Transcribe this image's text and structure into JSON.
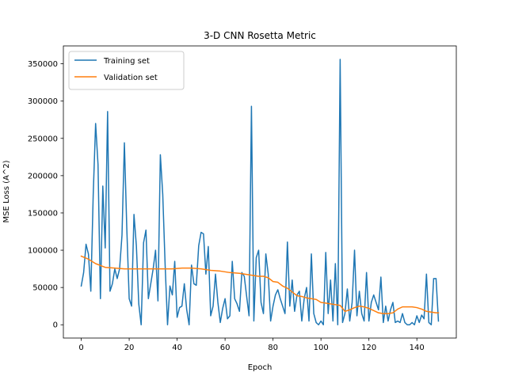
{
  "chart_data": {
    "type": "line",
    "title": "3-D CNN Rosetta Metric",
    "xlabel": "Epoch",
    "ylabel": "MSE Loss (A^2)",
    "xlim": [
      -7.45,
      156.45
    ],
    "ylim": [
      -17800,
      374000
    ],
    "xticks": [
      0,
      20,
      40,
      60,
      80,
      100,
      120,
      140
    ],
    "yticks": [
      0,
      50000,
      100000,
      150000,
      200000,
      250000,
      300000,
      350000
    ],
    "grid": false,
    "legend_position": "upper left",
    "series": [
      {
        "name": "Training set",
        "color": "#1f77b4",
        "x": [
          0,
          1,
          2,
          3,
          4,
          5,
          6,
          7,
          8,
          9,
          10,
          11,
          12,
          13,
          14,
          15,
          16,
          17,
          18,
          19,
          20,
          21,
          22,
          23,
          24,
          25,
          26,
          27,
          28,
          29,
          30,
          31,
          32,
          33,
          34,
          35,
          36,
          37,
          38,
          39,
          40,
          41,
          42,
          43,
          44,
          45,
          46,
          47,
          48,
          49,
          50,
          51,
          52,
          53,
          54,
          55,
          56,
          57,
          58,
          59,
          60,
          61,
          62,
          63,
          64,
          65,
          66,
          67,
          68,
          69,
          70,
          71,
          72,
          73,
          74,
          75,
          76,
          77,
          78,
          79,
          80,
          81,
          82,
          83,
          84,
          85,
          86,
          87,
          88,
          89,
          90,
          91,
          92,
          93,
          94,
          95,
          96,
          97,
          98,
          99,
          100,
          101,
          102,
          103,
          104,
          105,
          106,
          107,
          108,
          109,
          110,
          111,
          112,
          113,
          114,
          115,
          116,
          117,
          118,
          119,
          120,
          121,
          122,
          123,
          124,
          125,
          126,
          127,
          128,
          129,
          130,
          131,
          132,
          133,
          134,
          135,
          136,
          137,
          138,
          139,
          140,
          141,
          142,
          143,
          144,
          145,
          146,
          147,
          148,
          149
        ],
        "values": [
          52000,
          70000,
          108000,
          95000,
          45000,
          175000,
          270000,
          215000,
          35000,
          186000,
          103000,
          286000,
          45000,
          55000,
          75000,
          62000,
          75000,
          120000,
          244000,
          130000,
          35000,
          25000,
          148000,
          106000,
          28000,
          0,
          110000,
          127000,
          35000,
          55000,
          75000,
          100000,
          32000,
          228000,
          175000,
          80000,
          0,
          52000,
          40000,
          85000,
          10000,
          23000,
          25000,
          55000,
          20000,
          0,
          80000,
          55000,
          53000,
          106000,
          124000,
          122000,
          68000,
          105000,
          12000,
          25000,
          68000,
          30000,
          3000,
          22000,
          35000,
          8000,
          12000,
          85000,
          35000,
          28000,
          18000,
          70000,
          65000,
          38000,
          12000,
          293000,
          5000,
          90000,
          100000,
          30000,
          15000,
          95000,
          68000,
          5000,
          25000,
          40000,
          47000,
          35000,
          25000,
          15000,
          111000,
          25000,
          60000,
          18000,
          40000,
          45000,
          5000,
          35000,
          50000,
          5000,
          95000,
          15000,
          3000,
          0,
          5000,
          0,
          97000,
          15000,
          60000,
          5000,
          82000,
          0,
          356000,
          3000,
          15000,
          48000,
          5000,
          30000,
          100000,
          12000,
          45000,
          15000,
          5000,
          70000,
          5000,
          30000,
          40000,
          30000,
          20000,
          64000,
          3000,
          25000,
          5000,
          20000,
          30000,
          3000,
          5000,
          3000,
          15000,
          3000,
          0,
          0,
          3000,
          0,
          12000,
          3000,
          13000,
          8000,
          68000,
          3000,
          0,
          62000,
          62000,
          5000
        ]
      },
      {
        "name": "Validation set",
        "color": "#ff7f0e",
        "x": [
          0,
          3,
          6,
          10,
          14,
          18,
          22,
          26,
          30,
          34,
          38,
          42,
          46,
          50,
          54,
          58,
          62,
          66,
          70,
          74,
          76,
          78,
          80,
          82,
          84,
          86,
          88,
          90,
          92,
          94,
          96,
          98,
          100,
          102,
          104,
          106,
          108,
          110,
          112,
          114,
          116,
          118,
          120,
          122,
          124,
          126,
          128,
          130,
          132,
          134,
          136,
          138,
          140,
          142,
          144,
          146,
          148,
          149
        ],
        "values": [
          92000,
          88000,
          82000,
          77000,
          76000,
          75000,
          75000,
          75000,
          75000,
          75000,
          75000,
          76000,
          76000,
          75000,
          73000,
          72000,
          70000,
          69000,
          67000,
          65000,
          65000,
          63000,
          58000,
          57000,
          52000,
          49000,
          44000,
          39000,
          38000,
          36000,
          35000,
          34000,
          30000,
          29000,
          28000,
          27000,
          26000,
          18000,
          20000,
          23000,
          25000,
          24000,
          22000,
          19000,
          16000,
          15000,
          15000,
          16000,
          21000,
          24000,
          24000,
          24000,
          23000,
          21000,
          18000,
          17000,
          16000,
          16000
        ]
      }
    ]
  }
}
